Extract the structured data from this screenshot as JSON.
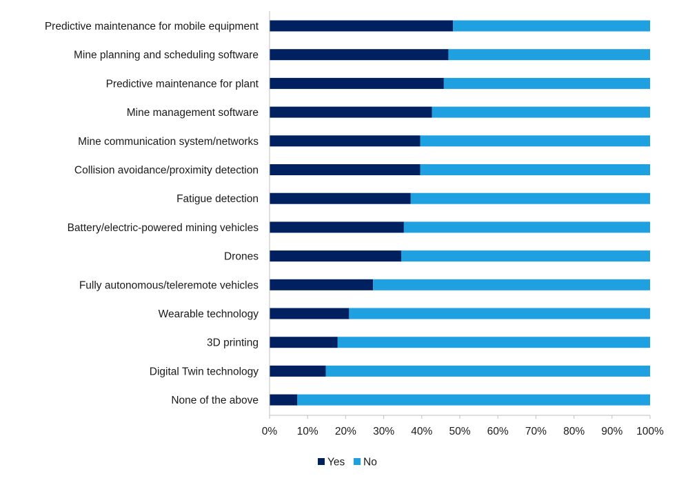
{
  "chart_data": {
    "type": "bar",
    "orientation": "horizontal",
    "stacked": true,
    "percent_stacked": true,
    "title": "",
    "xlabel": "",
    "ylabel": "",
    "xlim": [
      0,
      100
    ],
    "grid": false,
    "legend_position": "bottom",
    "categories": [
      "Predictive maintenance for mobile equipment",
      "Mine planning and scheduling software",
      "Predictive maintenance for plant",
      "Mine management software",
      "Mine communication system/networks",
      "Collision avoidance/proximity detection",
      "Fatigue detection",
      "Battery/electric-powered mining vehicles",
      "Drones",
      "Fully autonomous/teleremote vehicles",
      "Wearable technology",
      "3D printing",
      "Digital Twin technology",
      "None of the above"
    ],
    "series": [
      {
        "name": "Yes",
        "color": "#002060",
        "values": [
          48.2,
          47.0,
          45.8,
          42.7,
          39.6,
          39.6,
          37.1,
          35.3,
          34.6,
          27.2,
          20.9,
          17.9,
          14.8,
          7.3
        ]
      },
      {
        "name": "No",
        "color": "#1ea0e1",
        "values": [
          51.8,
          53.0,
          54.2,
          57.3,
          60.4,
          60.4,
          62.9,
          64.7,
          65.4,
          72.8,
          79.1,
          82.1,
          85.2,
          92.7
        ]
      }
    ],
    "x_ticks": [
      "0%",
      "10%",
      "20%",
      "30%",
      "40%",
      "50%",
      "60%",
      "70%",
      "80%",
      "90%",
      "100%"
    ]
  }
}
